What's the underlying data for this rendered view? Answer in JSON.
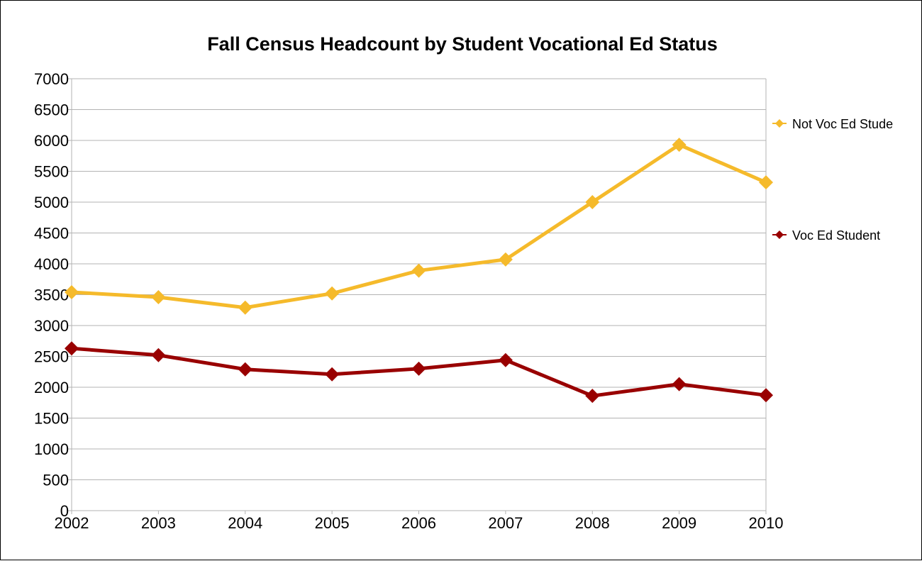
{
  "chart_data": {
    "type": "line",
    "title": "Fall Census Headcount by Student Vocational Ed Status",
    "xlabel": "",
    "ylabel": "",
    "x": [
      "2002",
      "2003",
      "2004",
      "2005",
      "2006",
      "2007",
      "2008",
      "2009",
      "2010"
    ],
    "ylim": [
      0,
      7000
    ],
    "yticks": [
      0,
      500,
      1000,
      1500,
      2000,
      2500,
      3000,
      3500,
      4000,
      4500,
      5000,
      5500,
      6000,
      6500,
      7000
    ],
    "grid": true,
    "legend_position": "right",
    "series": [
      {
        "name": "Not Voc Ed Stude",
        "color": "#F5BA2B",
        "marker": "diamond",
        "values": [
          3540,
          3460,
          3290,
          3520,
          3890,
          4070,
          5000,
          5930,
          5320
        ]
      },
      {
        "name": "Voc Ed Student",
        "color": "#990000",
        "marker": "diamond",
        "values": [
          2630,
          2520,
          2290,
          2210,
          2300,
          2440,
          1860,
          2050,
          1870
        ]
      }
    ]
  }
}
